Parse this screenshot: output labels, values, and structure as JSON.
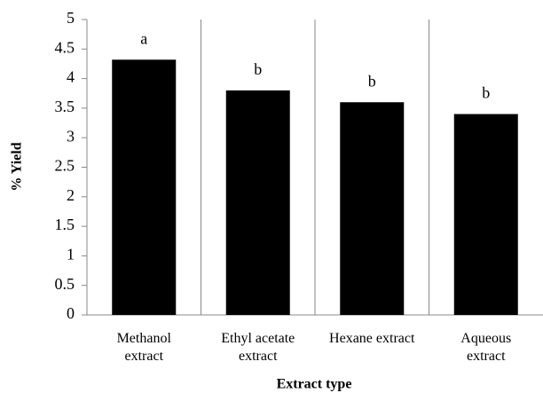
{
  "chart_data": {
    "type": "bar",
    "x_label": "Extract type",
    "y_label": "% Yield",
    "categories": [
      "Methanol\nextract",
      "Ethyl acetate\nextract",
      "Hexane extract",
      "Aqueous\nextract"
    ],
    "values": [
      4.32,
      3.8,
      3.6,
      3.4
    ],
    "annotations": [
      "a",
      "b",
      "b",
      "b"
    ],
    "color": "#000000",
    "ylim": [
      0,
      5
    ],
    "yticks": [
      0,
      0.5,
      1,
      1.5,
      2,
      2.5,
      3,
      3.5,
      4,
      4.5,
      5
    ],
    "grid": false
  }
}
